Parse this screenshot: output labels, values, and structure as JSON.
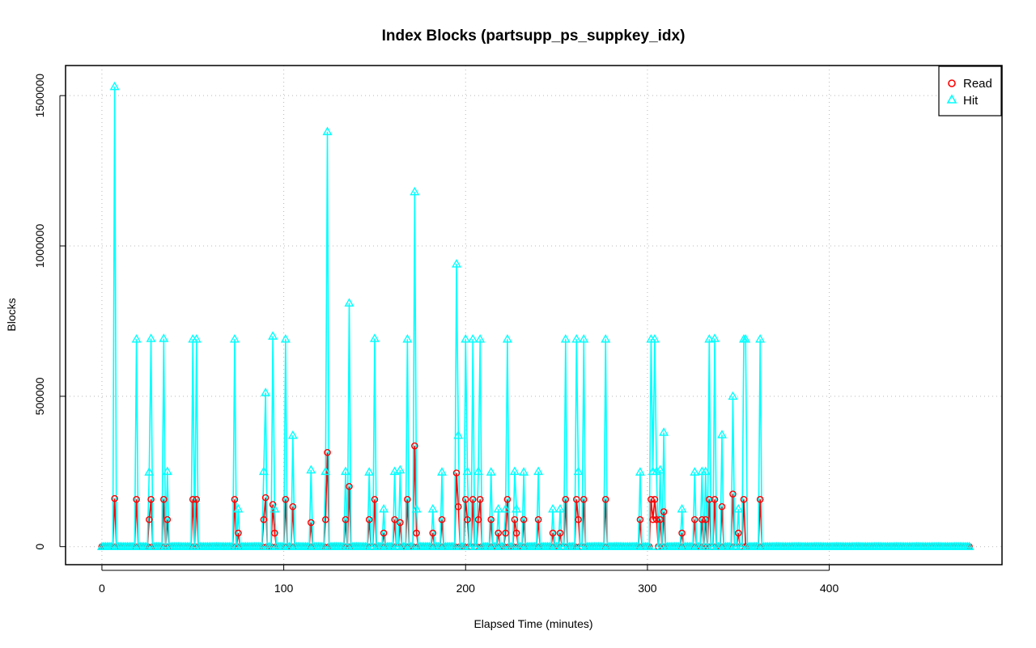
{
  "chart_data": {
    "type": "line",
    "title": "Index Blocks (partsupp_ps_suppkey_idx)",
    "xlabel": "Elapsed Time (minutes)",
    "ylabel": "Blocks",
    "xlim": [
      -20,
      495
    ],
    "ylim": [
      -60000,
      1600000
    ],
    "x_ticks": [
      0,
      100,
      200,
      300,
      400
    ],
    "y_ticks": [
      0,
      500000,
      1000000,
      1500000
    ],
    "x_tick_labels": [
      "0",
      "100",
      "200",
      "300",
      "400"
    ],
    "y_tick_labels": [
      "0",
      "500000",
      "1000000",
      "1500000"
    ],
    "grid": true,
    "legend_position": "top-right",
    "x_max": 477,
    "series": [
      {
        "name": "Read",
        "color": "#ff0000",
        "marker": "circle",
        "points": [
          [
            7,
            160000
          ],
          [
            19,
            157000
          ],
          [
            26,
            90000
          ],
          [
            27,
            157000
          ],
          [
            34,
            157000
          ],
          [
            36,
            90000
          ],
          [
            50,
            157000
          ],
          [
            52,
            157000
          ],
          [
            73,
            157000
          ],
          [
            75,
            45000
          ],
          [
            89,
            90000
          ],
          [
            90,
            163000
          ],
          [
            94,
            140000
          ],
          [
            95,
            45000
          ],
          [
            101,
            157000
          ],
          [
            105,
            133000
          ],
          [
            115,
            80000
          ],
          [
            123,
            90000
          ],
          [
            124,
            313000
          ],
          [
            134,
            90000
          ],
          [
            136,
            200000
          ],
          [
            147,
            90000
          ],
          [
            150,
            157000
          ],
          [
            155,
            45000
          ],
          [
            161,
            90000
          ],
          [
            164,
            80000
          ],
          [
            168,
            157000
          ],
          [
            172,
            335000
          ],
          [
            173,
            45000
          ],
          [
            182,
            45000
          ],
          [
            187,
            90000
          ],
          [
            195,
            245000
          ],
          [
            196,
            133000
          ],
          [
            200,
            157000
          ],
          [
            201,
            90000
          ],
          [
            204,
            157000
          ],
          [
            207,
            90000
          ],
          [
            208,
            157000
          ],
          [
            214,
            90000
          ],
          [
            218,
            45000
          ],
          [
            222,
            45000
          ],
          [
            223,
            157000
          ],
          [
            227,
            90000
          ],
          [
            228,
            45000
          ],
          [
            232,
            90000
          ],
          [
            240,
            90000
          ],
          [
            248,
            45000
          ],
          [
            252,
            45000
          ],
          [
            255,
            157000
          ],
          [
            261,
            157000
          ],
          [
            262,
            90000
          ],
          [
            265,
            157000
          ],
          [
            277,
            157000
          ],
          [
            296,
            90000
          ],
          [
            302,
            157000
          ],
          [
            303,
            90000
          ],
          [
            304,
            157000
          ],
          [
            305,
            90000
          ],
          [
            307,
            90000
          ],
          [
            309,
            116000
          ],
          [
            319,
            45000
          ],
          [
            326,
            90000
          ],
          [
            330,
            90000
          ],
          [
            332,
            90000
          ],
          [
            334,
            157000
          ],
          [
            337,
            157000
          ],
          [
            341,
            133000
          ],
          [
            347,
            175000
          ],
          [
            350,
            45000
          ],
          [
            353,
            157000
          ],
          [
            362,
            157000
          ]
        ]
      },
      {
        "name": "Hit",
        "color": "#00ffff",
        "marker": "triangle",
        "points": [
          [
            7,
            1530000
          ],
          [
            19,
            690000
          ],
          [
            26,
            248000
          ],
          [
            27,
            692000
          ],
          [
            34,
            692000
          ],
          [
            36,
            250000
          ],
          [
            50,
            690000
          ],
          [
            52,
            690000
          ],
          [
            73,
            690000
          ],
          [
            75,
            125000
          ],
          [
            89,
            250000
          ],
          [
            90,
            512000
          ],
          [
            94,
            700000
          ],
          [
            95,
            125000
          ],
          [
            101,
            690000
          ],
          [
            105,
            370000
          ],
          [
            115,
            255000
          ],
          [
            123,
            250000
          ],
          [
            124,
            1380000
          ],
          [
            134,
            250000
          ],
          [
            136,
            810000
          ],
          [
            147,
            248000
          ],
          [
            150,
            692000
          ],
          [
            155,
            125000
          ],
          [
            161,
            250000
          ],
          [
            164,
            255000
          ],
          [
            168,
            690000
          ],
          [
            172,
            1180000
          ],
          [
            173,
            125000
          ],
          [
            182,
            125000
          ],
          [
            187,
            248000
          ],
          [
            195,
            940000
          ],
          [
            196,
            370000
          ],
          [
            200,
            690000
          ],
          [
            201,
            250000
          ],
          [
            204,
            690000
          ],
          [
            207,
            250000
          ],
          [
            208,
            690000
          ],
          [
            214,
            248000
          ],
          [
            218,
            125000
          ],
          [
            222,
            125000
          ],
          [
            223,
            690000
          ],
          [
            227,
            250000
          ],
          [
            228,
            125000
          ],
          [
            232,
            248000
          ],
          [
            240,
            250000
          ],
          [
            248,
            125000
          ],
          [
            252,
            125000
          ],
          [
            255,
            690000
          ],
          [
            261,
            690000
          ],
          [
            262,
            250000
          ],
          [
            265,
            690000
          ],
          [
            277,
            690000
          ],
          [
            296,
            248000
          ],
          [
            302,
            690000
          ],
          [
            303,
            250000
          ],
          [
            304,
            690000
          ],
          [
            305,
            250000
          ],
          [
            307,
            255000
          ],
          [
            309,
            380000
          ],
          [
            319,
            125000
          ],
          [
            326,
            248000
          ],
          [
            330,
            250000
          ],
          [
            332,
            250000
          ],
          [
            334,
            690000
          ],
          [
            337,
            692000
          ],
          [
            341,
            372000
          ],
          [
            347,
            500000
          ],
          [
            350,
            125000
          ],
          [
            353,
            690000
          ],
          [
            354,
            690000
          ],
          [
            362,
            690000
          ]
        ]
      }
    ]
  }
}
